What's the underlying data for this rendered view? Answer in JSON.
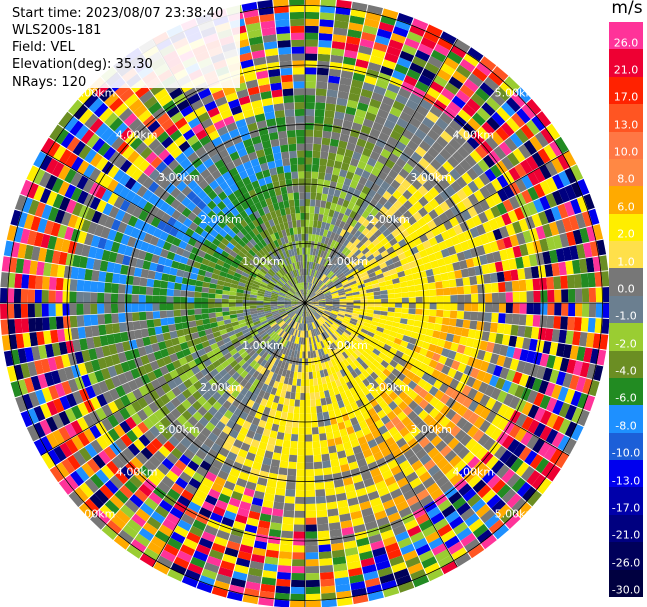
{
  "info": {
    "start_time": "Start time: 2023/08/07 23:38:40",
    "site": "WLS200s-181",
    "field": "Field: VEL",
    "elevation": "Elevation(deg): 35.30",
    "nrays": "NRays: 120"
  },
  "colorbar": {
    "unit": "m/s",
    "levels": [
      {
        "label": "26.0",
        "color": "#ff3399"
      },
      {
        "label": "21.0",
        "color": "#ee0033"
      },
      {
        "label": "17.0",
        "color": "#ff2200"
      },
      {
        "label": "13.0",
        "color": "#ff5522"
      },
      {
        "label": "10.0",
        "color": "#ff7744"
      },
      {
        "label": "8.0",
        "color": "#ff8844"
      },
      {
        "label": "6.0",
        "color": "#ffaa00"
      },
      {
        "label": "2.0",
        "color": "#ffee00"
      },
      {
        "label": "1.0",
        "color": "#ffe04a"
      },
      {
        "label": "0.0",
        "color": "#777777"
      },
      {
        "label": "-1.0",
        "color": "#6b7f90"
      },
      {
        "label": "-2.0",
        "color": "#9acd32"
      },
      {
        "label": "-4.0",
        "color": "#6b8e23"
      },
      {
        "label": "-6.0",
        "color": "#228b22"
      },
      {
        "label": "-8.0",
        "color": "#1e90ff"
      },
      {
        "label": "-10.0",
        "color": "#1c5fd8"
      },
      {
        "label": "-13.0",
        "color": "#0000ee"
      },
      {
        "label": "-17.0",
        "color": "#0000aa"
      },
      {
        "label": "-21.0",
        "color": "#000080"
      },
      {
        "label": "-26.0",
        "color": "#00005a"
      },
      {
        "label": "-30.0",
        "color": "#000040"
      }
    ]
  },
  "chart_data": {
    "type": "heatmap",
    "subtype": "polar-ppi",
    "field": "VEL",
    "units": "m/s",
    "nrays": 120,
    "elevation_deg": 35.3,
    "range_ring_labels": [
      "1.00km",
      "2.00km",
      "3.00km",
      "4.00km",
      "5.00km"
    ],
    "range_rings_km": [
      1,
      2,
      3,
      4,
      5
    ],
    "value_range": [
      -30.0,
      26.0
    ],
    "pattern_description_by_range": [
      {
        "range_km": [
          0,
          2
        ],
        "dominant_values_ms": [
          -2.0,
          2.0
        ]
      },
      {
        "range_km": [
          2,
          3.5
        ],
        "dominant_values_ms": [
          -6.0,
          6.0
        ]
      },
      {
        "range_km": [
          3.5,
          5.5
        ],
        "dominant_values_ms": "noise, full scale"
      }
    ]
  }
}
